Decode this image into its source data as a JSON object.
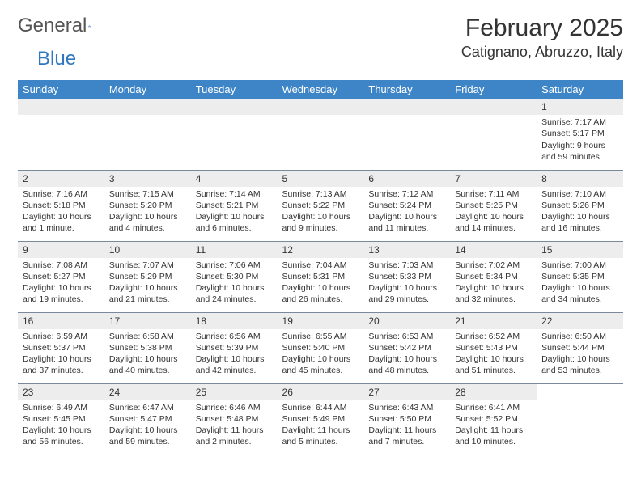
{
  "brand": {
    "word1": "General",
    "word2": "Blue"
  },
  "title": "February 2025",
  "location": "Catignano, Abruzzo, Italy",
  "colors": {
    "header_bg": "#3d85c6",
    "header_text": "#ffffff",
    "daynum_bg": "#ededed",
    "row_border": "#7a8a9a",
    "brand_blue": "#2f78bf",
    "text": "#333333"
  },
  "weekdays": [
    "Sunday",
    "Monday",
    "Tuesday",
    "Wednesday",
    "Thursday",
    "Friday",
    "Saturday"
  ],
  "grid": [
    [
      null,
      null,
      null,
      null,
      null,
      null,
      {
        "n": "1",
        "sr": "Sunrise: 7:17 AM",
        "ss": "Sunset: 5:17 PM",
        "dl": "Daylight: 9 hours and 59 minutes."
      }
    ],
    [
      {
        "n": "2",
        "sr": "Sunrise: 7:16 AM",
        "ss": "Sunset: 5:18 PM",
        "dl": "Daylight: 10 hours and 1 minute."
      },
      {
        "n": "3",
        "sr": "Sunrise: 7:15 AM",
        "ss": "Sunset: 5:20 PM",
        "dl": "Daylight: 10 hours and 4 minutes."
      },
      {
        "n": "4",
        "sr": "Sunrise: 7:14 AM",
        "ss": "Sunset: 5:21 PM",
        "dl": "Daylight: 10 hours and 6 minutes."
      },
      {
        "n": "5",
        "sr": "Sunrise: 7:13 AM",
        "ss": "Sunset: 5:22 PM",
        "dl": "Daylight: 10 hours and 9 minutes."
      },
      {
        "n": "6",
        "sr": "Sunrise: 7:12 AM",
        "ss": "Sunset: 5:24 PM",
        "dl": "Daylight: 10 hours and 11 minutes."
      },
      {
        "n": "7",
        "sr": "Sunrise: 7:11 AM",
        "ss": "Sunset: 5:25 PM",
        "dl": "Daylight: 10 hours and 14 minutes."
      },
      {
        "n": "8",
        "sr": "Sunrise: 7:10 AM",
        "ss": "Sunset: 5:26 PM",
        "dl": "Daylight: 10 hours and 16 minutes."
      }
    ],
    [
      {
        "n": "9",
        "sr": "Sunrise: 7:08 AM",
        "ss": "Sunset: 5:27 PM",
        "dl": "Daylight: 10 hours and 19 minutes."
      },
      {
        "n": "10",
        "sr": "Sunrise: 7:07 AM",
        "ss": "Sunset: 5:29 PM",
        "dl": "Daylight: 10 hours and 21 minutes."
      },
      {
        "n": "11",
        "sr": "Sunrise: 7:06 AM",
        "ss": "Sunset: 5:30 PM",
        "dl": "Daylight: 10 hours and 24 minutes."
      },
      {
        "n": "12",
        "sr": "Sunrise: 7:04 AM",
        "ss": "Sunset: 5:31 PM",
        "dl": "Daylight: 10 hours and 26 minutes."
      },
      {
        "n": "13",
        "sr": "Sunrise: 7:03 AM",
        "ss": "Sunset: 5:33 PM",
        "dl": "Daylight: 10 hours and 29 minutes."
      },
      {
        "n": "14",
        "sr": "Sunrise: 7:02 AM",
        "ss": "Sunset: 5:34 PM",
        "dl": "Daylight: 10 hours and 32 minutes."
      },
      {
        "n": "15",
        "sr": "Sunrise: 7:00 AM",
        "ss": "Sunset: 5:35 PM",
        "dl": "Daylight: 10 hours and 34 minutes."
      }
    ],
    [
      {
        "n": "16",
        "sr": "Sunrise: 6:59 AM",
        "ss": "Sunset: 5:37 PM",
        "dl": "Daylight: 10 hours and 37 minutes."
      },
      {
        "n": "17",
        "sr": "Sunrise: 6:58 AM",
        "ss": "Sunset: 5:38 PM",
        "dl": "Daylight: 10 hours and 40 minutes."
      },
      {
        "n": "18",
        "sr": "Sunrise: 6:56 AM",
        "ss": "Sunset: 5:39 PM",
        "dl": "Daylight: 10 hours and 42 minutes."
      },
      {
        "n": "19",
        "sr": "Sunrise: 6:55 AM",
        "ss": "Sunset: 5:40 PM",
        "dl": "Daylight: 10 hours and 45 minutes."
      },
      {
        "n": "20",
        "sr": "Sunrise: 6:53 AM",
        "ss": "Sunset: 5:42 PM",
        "dl": "Daylight: 10 hours and 48 minutes."
      },
      {
        "n": "21",
        "sr": "Sunrise: 6:52 AM",
        "ss": "Sunset: 5:43 PM",
        "dl": "Daylight: 10 hours and 51 minutes."
      },
      {
        "n": "22",
        "sr": "Sunrise: 6:50 AM",
        "ss": "Sunset: 5:44 PM",
        "dl": "Daylight: 10 hours and 53 minutes."
      }
    ],
    [
      {
        "n": "23",
        "sr": "Sunrise: 6:49 AM",
        "ss": "Sunset: 5:45 PM",
        "dl": "Daylight: 10 hours and 56 minutes."
      },
      {
        "n": "24",
        "sr": "Sunrise: 6:47 AM",
        "ss": "Sunset: 5:47 PM",
        "dl": "Daylight: 10 hours and 59 minutes."
      },
      {
        "n": "25",
        "sr": "Sunrise: 6:46 AM",
        "ss": "Sunset: 5:48 PM",
        "dl": "Daylight: 11 hours and 2 minutes."
      },
      {
        "n": "26",
        "sr": "Sunrise: 6:44 AM",
        "ss": "Sunset: 5:49 PM",
        "dl": "Daylight: 11 hours and 5 minutes."
      },
      {
        "n": "27",
        "sr": "Sunrise: 6:43 AM",
        "ss": "Sunset: 5:50 PM",
        "dl": "Daylight: 11 hours and 7 minutes."
      },
      {
        "n": "28",
        "sr": "Sunrise: 6:41 AM",
        "ss": "Sunset: 5:52 PM",
        "dl": "Daylight: 11 hours and 10 minutes."
      },
      null
    ]
  ]
}
